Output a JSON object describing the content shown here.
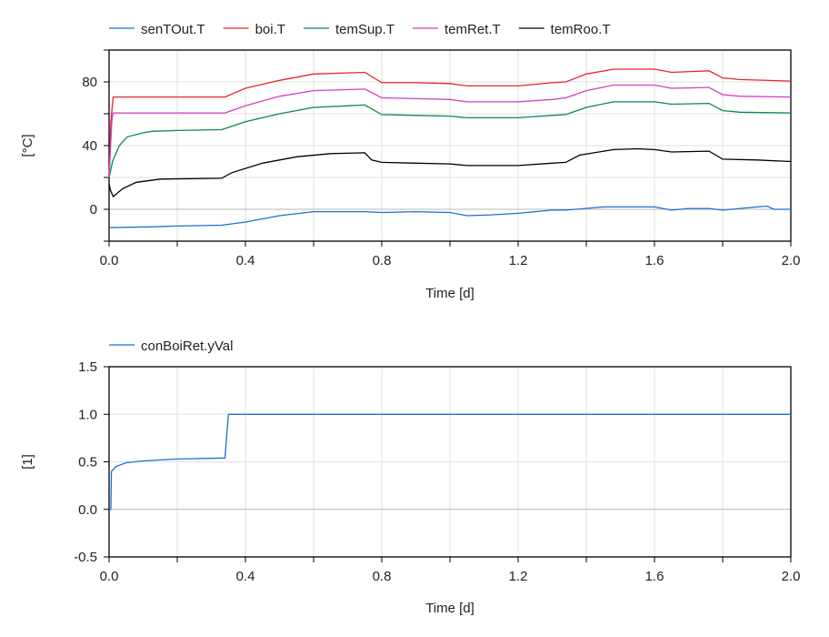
{
  "chart_data": [
    {
      "type": "line",
      "xlabel": "Time [d]",
      "ylabel": "[°C]",
      "xlim": [
        0,
        2.0
      ],
      "ylim": [
        -20,
        100
      ],
      "xticks": [
        "0.0",
        "0.4",
        "0.8",
        "1.2",
        "1.6",
        "2.0"
      ],
      "yticks": [
        "0",
        "40",
        "80"
      ],
      "grid": true,
      "legend": "top",
      "series": [
        {
          "name": "senTOut.T",
          "color": "#1f6fd1",
          "x": [
            0,
            0.12,
            0.2,
            0.33,
            0.4,
            0.5,
            0.6,
            0.75,
            0.8,
            0.9,
            1.0,
            1.05,
            1.12,
            1.2,
            1.3,
            1.34,
            1.45,
            1.6,
            1.65,
            1.7,
            1.76,
            1.8,
            1.85,
            1.9,
            1.93,
            1.95,
            2.0
          ],
          "y": [
            -11.5,
            -11,
            -10.5,
            -10,
            -8,
            -4,
            -1.5,
            -1.5,
            -2,
            -1.5,
            -2,
            -4,
            -3.5,
            -2.5,
            -0.5,
            -0.5,
            1.5,
            1.5,
            -0.5,
            0.5,
            0.5,
            -0.5,
            0.5,
            1.5,
            2,
            0,
            0
          ]
        },
        {
          "name": "boi.T",
          "color": "#e8262b",
          "x": [
            0,
            0.005,
            0.012,
            0.34,
            0.4,
            0.5,
            0.6,
            0.75,
            0.8,
            0.9,
            1.0,
            1.05,
            1.2,
            1.3,
            1.34,
            1.4,
            1.48,
            1.6,
            1.65,
            1.76,
            1.8,
            1.85,
            2.0
          ],
          "y": [
            20,
            55,
            70.5,
            70.5,
            76,
            81,
            85,
            86,
            79.5,
            79.5,
            79,
            77.5,
            77.5,
            79.5,
            80,
            85,
            88,
            88,
            86,
            87,
            82.5,
            81.5,
            80.5
          ]
        },
        {
          "name": "temSup.T",
          "color": "#0a8a4a",
          "x": [
            0,
            0.01,
            0.03,
            0.053,
            0.1,
            0.125,
            0.2,
            0.33,
            0.4,
            0.5,
            0.6,
            0.75,
            0.8,
            0.9,
            1.0,
            1.05,
            1.2,
            1.3,
            1.34,
            1.4,
            1.48,
            1.6,
            1.65,
            1.76,
            1.8,
            1.85,
            2.0
          ],
          "y": [
            20,
            30,
            40,
            45.5,
            48,
            49,
            49.5,
            50,
            55,
            60,
            64,
            65.5,
            59.5,
            59,
            58.5,
            57.5,
            57.5,
            59,
            59.5,
            64,
            67.5,
            67.5,
            66,
            66.5,
            62,
            61,
            60.5
          ]
        },
        {
          "name": "temRet.T",
          "color": "#d23fc0",
          "x": [
            0,
            0.008,
            0.012,
            0.34,
            0.4,
            0.5,
            0.6,
            0.75,
            0.8,
            0.9,
            1.0,
            1.05,
            1.2,
            1.3,
            1.34,
            1.4,
            1.48,
            1.6,
            1.65,
            1.76,
            1.8,
            1.85,
            2.0
          ],
          "y": [
            20,
            55,
            60.5,
            60.5,
            65,
            71,
            74.5,
            75.5,
            70,
            69.5,
            69,
            67.5,
            67.5,
            69,
            70,
            74.5,
            78,
            78,
            76,
            76.5,
            72,
            71,
            70.5
          ]
        },
        {
          "name": "temRoo.T",
          "color": "#000000",
          "x": [
            0,
            0.004,
            0.012,
            0.04,
            0.08,
            0.15,
            0.33,
            0.36,
            0.45,
            0.55,
            0.65,
            0.75,
            0.77,
            0.8,
            0.9,
            1.0,
            1.05,
            1.2,
            1.3,
            1.34,
            1.38,
            1.48,
            1.55,
            1.6,
            1.65,
            1.76,
            1.8,
            1.9,
            2.0
          ],
          "y": [
            16,
            12,
            8,
            13,
            17,
            19,
            19.5,
            23,
            29,
            33,
            35,
            35.5,
            31,
            29.5,
            29,
            28.5,
            27.5,
            27.5,
            29,
            29.5,
            34,
            37.5,
            38,
            37.5,
            36,
            36.5,
            31.5,
            31,
            30
          ]
        }
      ]
    },
    {
      "type": "line",
      "xlabel": "Time [d]",
      "ylabel": "[1]",
      "xlim": [
        0,
        2.0
      ],
      "ylim": [
        -0.5,
        1.5
      ],
      "xticks": [
        "0.0",
        "0.4",
        "0.8",
        "1.2",
        "1.6",
        "2.0"
      ],
      "yticks": [
        "-0.5",
        "0.0",
        "0.5",
        "1.0",
        "1.5"
      ],
      "grid": true,
      "legend": "top",
      "series": [
        {
          "name": "conBoiRet.yVal",
          "color": "#1f6fd1",
          "x": [
            0,
            0.005,
            0.007,
            0.02,
            0.05,
            0.1,
            0.2,
            0.34,
            0.35,
            2.0
          ],
          "y": [
            0,
            0,
            0.4,
            0.45,
            0.49,
            0.51,
            0.53,
            0.54,
            1.0,
            1.0
          ]
        }
      ]
    }
  ]
}
